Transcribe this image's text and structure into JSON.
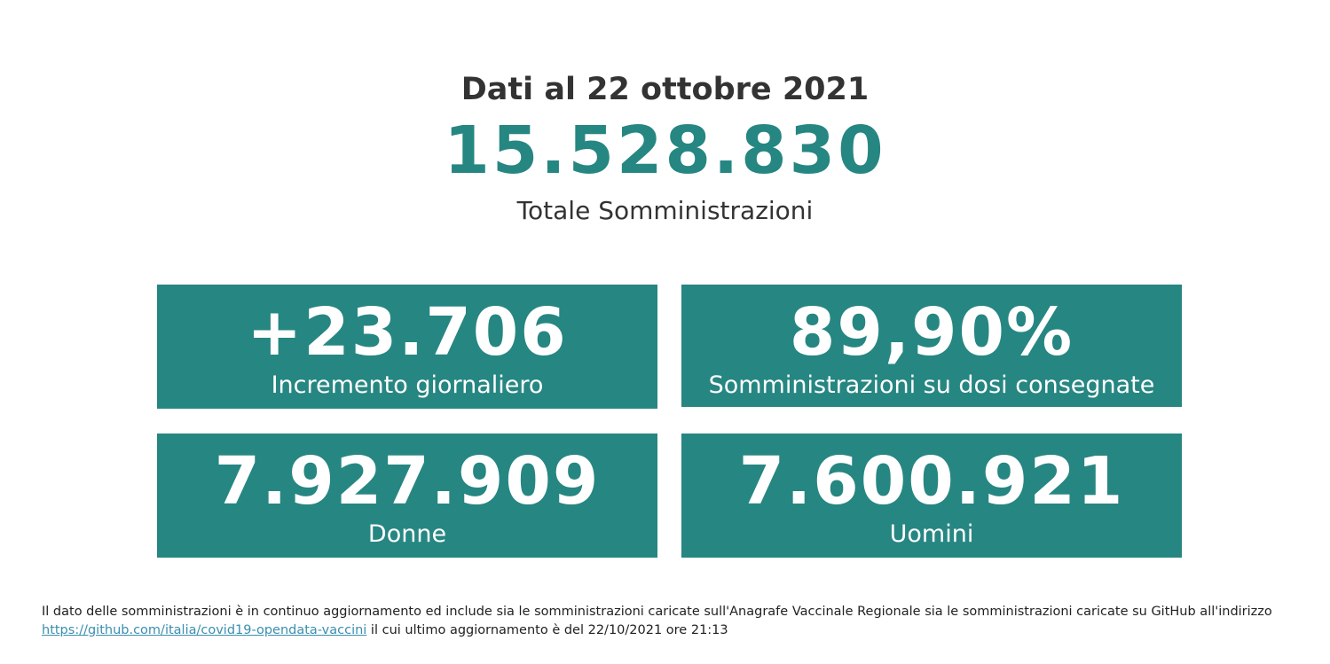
{
  "header": {
    "date_line": "Dati al 22 ottobre 2021",
    "total_value": "15.528.830",
    "total_label": "Totale Somministrazioni"
  },
  "cards": [
    {
      "value": "+23.706",
      "label": "Incremento giornaliero"
    },
    {
      "value": "89,90%",
      "label": "Somministrazioni su dosi consegnate"
    },
    {
      "value": "7.927.909",
      "label": "Donne"
    },
    {
      "value": "7.600.921",
      "label": "Uomini"
    }
  ],
  "footnote": {
    "line1": "Il dato delle somministrazioni è in continuo aggiornamento ed include sia le somministrazioni caricate sull'Anagrafe Vaccinale Regionale sia le somministrazioni caricate su GitHub all'indirizzo",
    "link_text": "https://github.com/italia/covid19-opendata-vaccini",
    "link_href": "https://github.com/italia/covid19-opendata-vaccini",
    "line2_suffix": " il cui ultimo aggiornamento è del 22/10/2021 ore 21:13"
  },
  "colors": {
    "accent": "#268682",
    "text": "#333333",
    "link": "#3a8fb0"
  }
}
